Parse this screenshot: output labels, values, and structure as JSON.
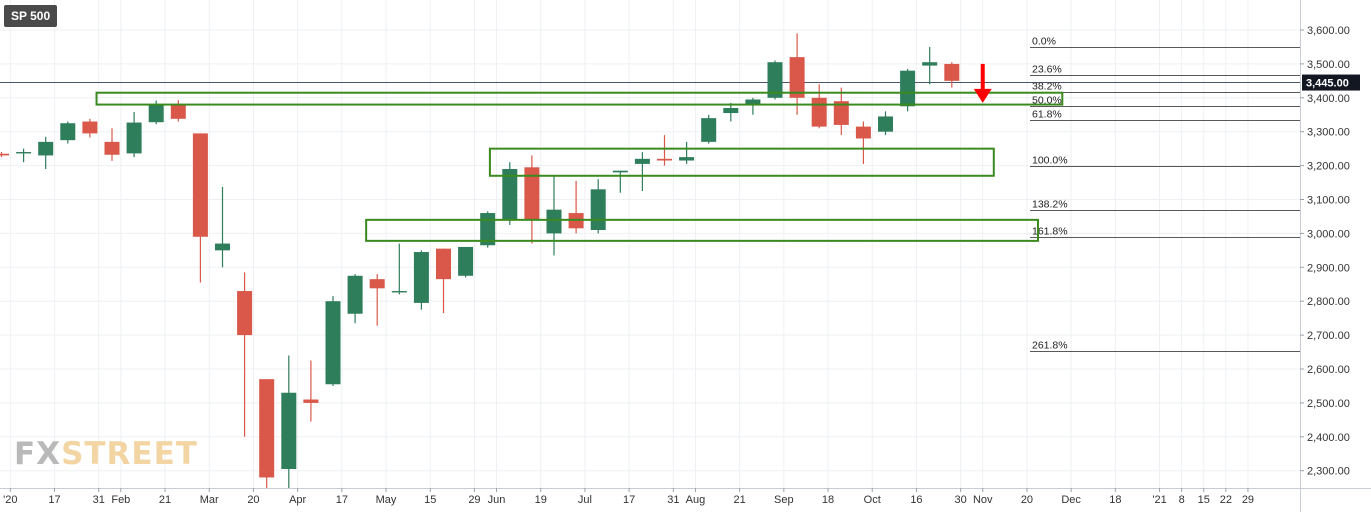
{
  "symbol": "SP 500",
  "watermark": {
    "part1": "FX",
    "part2": "STREET"
  },
  "colors": {
    "up": "#2e7d5b",
    "down": "#d9584a",
    "zone": "#3a8a1f",
    "arrow": "#ff0000",
    "grid": "#eef0f3",
    "price_tag": "#131722"
  },
  "chart_data": {
    "type": "candlestick",
    "title": "SP 500",
    "timeframe": "weekly",
    "ylim": [
      2270,
      3650
    ],
    "y_ticks": [
      2300,
      2400,
      2500,
      2600,
      2700,
      2800,
      2900,
      3000,
      3100,
      3200,
      3300,
      3400,
      3500,
      3600
    ],
    "y_tick_labels": [
      "2,300.00",
      "2,400.00",
      "2,500.00",
      "2,600.00",
      "2,700.00",
      "2,800.00",
      "2,900.00",
      "3,000.00",
      "3,100.00",
      "3,200.00",
      "3,300.00",
      "3,400.00",
      "3,500.00",
      "3,600.00"
    ],
    "current_price": 3445,
    "current_price_label": "3,445.00",
    "x_labels": [
      {
        "label": "'20",
        "week": 0.4
      },
      {
        "label": "17",
        "week": 2.4
      },
      {
        "label": "31",
        "week": 4.4
      },
      {
        "label": "Feb",
        "week": 5.4
      },
      {
        "label": "21",
        "week": 7.4
      },
      {
        "label": "Mar",
        "week": 9.4
      },
      {
        "label": "20",
        "week": 11.4
      },
      {
        "label": "Apr",
        "week": 13.4
      },
      {
        "label": "17",
        "week": 15.4
      },
      {
        "label": "May",
        "week": 17.4
      },
      {
        "label": "15",
        "week": 19.4
      },
      {
        "label": "29",
        "week": 21.4
      },
      {
        "label": "Jun",
        "week": 22.4
      },
      {
        "label": "19",
        "week": 24.4
      },
      {
        "label": "Jul",
        "week": 26.4
      },
      {
        "label": "17",
        "week": 28.4
      },
      {
        "label": "31",
        "week": 30.4
      },
      {
        "label": "Aug",
        "week": 31.4
      },
      {
        "label": "21",
        "week": 33.4
      },
      {
        "label": "Sep",
        "week": 35.4
      },
      {
        "label": "18",
        "week": 37.4
      },
      {
        "label": "Oct",
        "week": 39.4
      },
      {
        "label": "16",
        "week": 41.4
      },
      {
        "label": "30",
        "week": 43.4
      },
      {
        "label": "Nov",
        "week": 44.4
      },
      {
        "label": "20",
        "week": 46.4
      },
      {
        "label": "Dec",
        "week": 48.4
      },
      {
        "label": "18",
        "week": 50.4
      },
      {
        "label": "'21",
        "week": 52.4
      },
      {
        "label": "8",
        "week": 53.4
      },
      {
        "label": "15",
        "week": 54.4
      },
      {
        "label": "22",
        "week": 55.4
      },
      {
        "label": "29",
        "week": 56.4
      }
    ],
    "candles": [
      {
        "o": 3235,
        "h": 3240,
        "l": 3225,
        "c": 3230
      },
      {
        "o": 3238,
        "h": 3250,
        "l": 3210,
        "c": 3240
      },
      {
        "o": 3230,
        "h": 3285,
        "l": 3190,
        "c": 3270
      },
      {
        "o": 3275,
        "h": 3330,
        "l": 3265,
        "c": 3325
      },
      {
        "o": 3330,
        "h": 3338,
        "l": 3283,
        "c": 3295
      },
      {
        "o": 3270,
        "h": 3310,
        "l": 3214,
        "c": 3232
      },
      {
        "o": 3236,
        "h": 3358,
        "l": 3225,
        "c": 3327
      },
      {
        "o": 3328,
        "h": 3392,
        "l": 3322,
        "c": 3380
      },
      {
        "o": 3380,
        "h": 3393,
        "l": 3330,
        "c": 3338
      },
      {
        "o": 3295,
        "h": 3295,
        "l": 2855,
        "c": 2990
      },
      {
        "o": 2950,
        "h": 3137,
        "l": 2900,
        "c": 2970
      },
      {
        "o": 2830,
        "h": 2885,
        "l": 2400,
        "c": 2700
      },
      {
        "o": 2570,
        "h": 2570,
        "l": 2200,
        "c": 2280
      },
      {
        "o": 2305,
        "h": 2640,
        "l": 2190,
        "c": 2530
      },
      {
        "o": 2510,
        "h": 2625,
        "l": 2445,
        "c": 2500
      },
      {
        "o": 2555,
        "h": 2815,
        "l": 2550,
        "c": 2800
      },
      {
        "o": 2763,
        "h": 2880,
        "l": 2735,
        "c": 2875
      },
      {
        "o": 2865,
        "h": 2880,
        "l": 2728,
        "c": 2838
      },
      {
        "o": 2830,
        "h": 2970,
        "l": 2820,
        "c": 2830
      },
      {
        "o": 2795,
        "h": 2950,
        "l": 2775,
        "c": 2945
      },
      {
        "o": 2955,
        "h": 2955,
        "l": 2765,
        "c": 2865
      },
      {
        "o": 2875,
        "h": 2960,
        "l": 2870,
        "c": 2960
      },
      {
        "o": 2965,
        "h": 3065,
        "l": 2958,
        "c": 3060
      },
      {
        "o": 3040,
        "h": 3210,
        "l": 3025,
        "c": 3190
      },
      {
        "o": 3195,
        "h": 3230,
        "l": 2970,
        "c": 3040
      },
      {
        "o": 3000,
        "h": 3170,
        "l": 2935,
        "c": 3070
      },
      {
        "o": 3060,
        "h": 3155,
        "l": 3000,
        "c": 3015
      },
      {
        "o": 3010,
        "h": 3160,
        "l": 3000,
        "c": 3130
      },
      {
        "o": 3180,
        "h": 3185,
        "l": 3120,
        "c": 3185
      },
      {
        "o": 3205,
        "h": 3240,
        "l": 3125,
        "c": 3220
      },
      {
        "o": 3220,
        "h": 3290,
        "l": 3200,
        "c": 3215
      },
      {
        "o": 3215,
        "h": 3270,
        "l": 3205,
        "c": 3225
      },
      {
        "o": 3270,
        "h": 3350,
        "l": 3265,
        "c": 3340
      },
      {
        "o": 3355,
        "h": 3385,
        "l": 3330,
        "c": 3370
      },
      {
        "o": 3380,
        "h": 3400,
        "l": 3350,
        "c": 3395
      },
      {
        "o": 3400,
        "h": 3510,
        "l": 3395,
        "c": 3505
      },
      {
        "o": 3520,
        "h": 3590,
        "l": 3350,
        "c": 3400
      },
      {
        "o": 3400,
        "h": 3440,
        "l": 3310,
        "c": 3315
      },
      {
        "o": 3390,
        "h": 3430,
        "l": 3290,
        "c": 3320
      },
      {
        "o": 3315,
        "h": 3330,
        "l": 3205,
        "c": 3280
      },
      {
        "o": 3300,
        "h": 3360,
        "l": 3290,
        "c": 3345
      },
      {
        "o": 3375,
        "h": 3485,
        "l": 3360,
        "c": 3480
      },
      {
        "o": 3495,
        "h": 3550,
        "l": 3440,
        "c": 3505
      },
      {
        "o": 3500,
        "h": 3505,
        "l": 3430,
        "c": 3450
      }
    ],
    "fibonacci_levels": [
      {
        "label": "0.0%",
        "value": 3549
      },
      {
        "label": "23.6%",
        "value": 3467
      },
      {
        "label": "38.2%",
        "value": 3416
      },
      {
        "label": "50.0%",
        "value": 3375
      },
      {
        "label": "61.8%",
        "value": 3334
      },
      {
        "label": "100.0%",
        "value": 3200
      },
      {
        "label": "138.2%",
        "value": 3068
      },
      {
        "label": "161.8%",
        "value": 2990
      },
      {
        "label": "261.8%",
        "value": 2652
      }
    ],
    "zones": [
      {
        "x_from": 4.3,
        "x_to": 48.0,
        "y_low": 3380,
        "y_high": 3415
      },
      {
        "x_from": 22.1,
        "x_to": 44.9,
        "y_low": 3170,
        "y_high": 3250
      },
      {
        "x_from": 16.5,
        "x_to": 46.9,
        "y_low": 2978,
        "y_high": 3040
      }
    ],
    "arrow": {
      "week": 44.4,
      "y_from": 3500,
      "y_to": 3385,
      "direction": "down"
    }
  }
}
